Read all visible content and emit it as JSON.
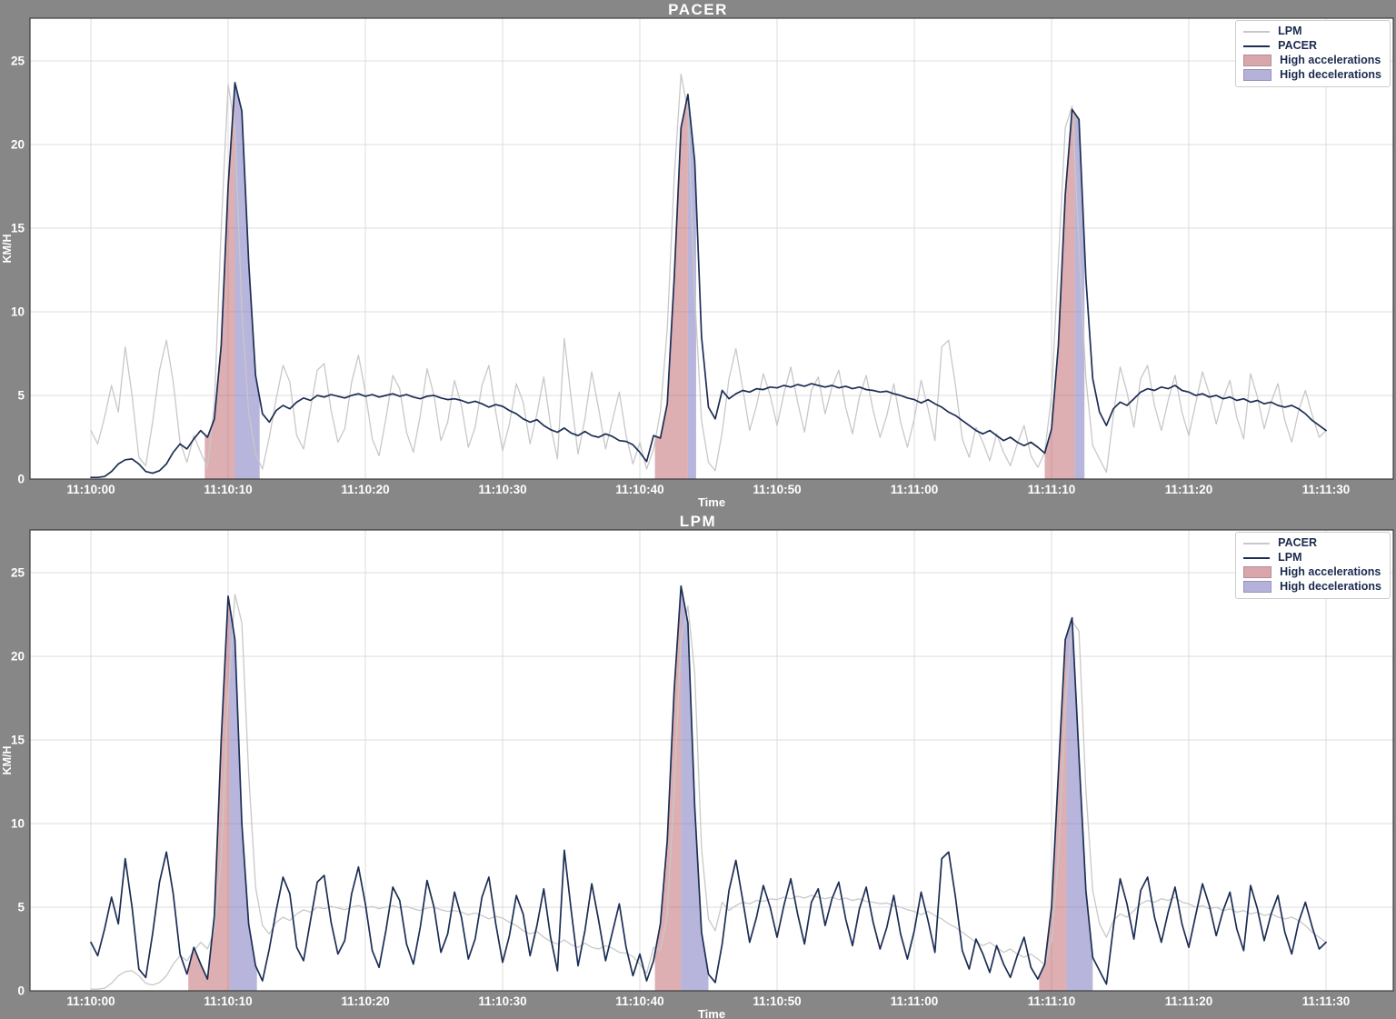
{
  "page": {
    "background": "#878787"
  },
  "charts": [
    {
      "title": "PACER",
      "xlabel": "Time",
      "ylabel": "KM/H",
      "legend": [
        {
          "label": "LPM",
          "type": "line",
          "color": "#c8c8c8"
        },
        {
          "label": "PACER",
          "type": "line",
          "color": "#1c2e54"
        },
        {
          "label": "High accelerations",
          "type": "patch",
          "color": "#d9a7ab"
        },
        {
          "label": "High decelerations",
          "type": "patch",
          "color": "#b5b2da"
        }
      ],
      "series": [
        {
          "data": "LPM",
          "color": "#c8c8c8",
          "width": 1.3
        },
        {
          "data": "PACER",
          "color": "#1c2e54",
          "width": 1.7
        }
      ],
      "primary": "PACER",
      "highlights": {
        "accelerations": [
          [
            8.3,
            10.5
          ],
          [
            41.1,
            43.5
          ],
          [
            69.5,
            71.7
          ]
        ],
        "decelerations": [
          [
            10.5,
            12.3
          ],
          [
            43.5,
            44.1
          ],
          [
            71.7,
            72.4
          ]
        ]
      }
    },
    {
      "title": "LPM",
      "xlabel": "Time",
      "ylabel": "KM/H",
      "legend": [
        {
          "label": "PACER",
          "type": "line",
          "color": "#c8c8c8"
        },
        {
          "label": "LPM",
          "type": "line",
          "color": "#1c2e54"
        },
        {
          "label": "High accelerations",
          "type": "patch",
          "color": "#d9a7ab"
        },
        {
          "label": "High decelerations",
          "type": "patch",
          "color": "#b5b2da"
        }
      ],
      "series": [
        {
          "data": "PACER",
          "color": "#c8c8c8",
          "width": 1.3
        },
        {
          "data": "LPM",
          "color": "#1c2e54",
          "width": 1.7
        }
      ],
      "primary": "LPM",
      "highlights": {
        "accelerations": [
          [
            7.1,
            10.1
          ],
          [
            41.1,
            43.0
          ],
          [
            69.1,
            71.1
          ]
        ],
        "decelerations": [
          [
            10.1,
            12.1
          ],
          [
            43.0,
            45.0
          ],
          [
            71.1,
            73.0
          ]
        ]
      }
    }
  ],
  "chart_data": {
    "type": "line",
    "title_top": "PACER",
    "title_bottom": "LPM",
    "xlabel": "Time",
    "ylabel": "KM/H",
    "x_start_label": "11:10:00",
    "x_step_seconds": 0.5,
    "x_tick_seconds": [
      0,
      10,
      20,
      30,
      40,
      50,
      60,
      70,
      80,
      90
    ],
    "x_tick_labels": [
      "11:10:00",
      "11:10:10",
      "11:10:20",
      "11:10:30",
      "11:10:40",
      "11:10:50",
      "11:11:00",
      "11:11:10",
      "11:11:20",
      "11:11:30"
    ],
    "y_ticks": [
      0,
      5,
      10,
      15,
      20,
      25
    ],
    "ylim": [
      0,
      27.6
    ],
    "grid": true,
    "legend_position": "upper right",
    "highlight_colors": {
      "accelerations": "rgba(187,95,102,0.50)",
      "decelerations": "rgba(124,120,190,0.55)"
    },
    "series": {
      "PACER": [
        0.1,
        0.1,
        0.15,
        0.45,
        0.9,
        1.15,
        1.2,
        0.9,
        0.45,
        0.35,
        0.5,
        0.9,
        1.6,
        2.1,
        1.8,
        2.4,
        2.9,
        2.5,
        3.6,
        8.0,
        17.5,
        23.7,
        22.0,
        13.0,
        6.2,
        3.9,
        3.4,
        4.1,
        4.4,
        4.2,
        4.6,
        4.85,
        4.7,
        5.0,
        4.9,
        5.05,
        4.95,
        4.85,
        5.0,
        5.1,
        4.95,
        5.05,
        4.9,
        5.0,
        5.1,
        4.95,
        5.05,
        4.9,
        4.8,
        4.95,
        5.0,
        4.85,
        4.75,
        4.8,
        4.7,
        4.55,
        4.65,
        4.5,
        4.3,
        4.45,
        4.35,
        4.1,
        3.9,
        3.6,
        3.4,
        3.55,
        3.2,
        2.95,
        2.8,
        3.05,
        2.75,
        2.6,
        2.85,
        2.6,
        2.5,
        2.7,
        2.55,
        2.3,
        2.25,
        2.05,
        1.6,
        1.05,
        2.6,
        2.45,
        4.5,
        12.0,
        21.0,
        23.0,
        19.0,
        8.5,
        4.3,
        3.6,
        5.3,
        4.8,
        5.1,
        5.3,
        5.2,
        5.4,
        5.35,
        5.5,
        5.45,
        5.6,
        5.5,
        5.65,
        5.55,
        5.7,
        5.6,
        5.5,
        5.6,
        5.45,
        5.55,
        5.4,
        5.5,
        5.35,
        5.3,
        5.2,
        5.25,
        5.1,
        5.0,
        4.85,
        4.75,
        4.55,
        4.75,
        4.5,
        4.3,
        4.0,
        3.8,
        3.5,
        3.2,
        2.9,
        2.7,
        2.9,
        2.6,
        2.3,
        2.5,
        2.2,
        2.0,
        2.2,
        1.9,
        1.55,
        3.0,
        8.0,
        17.0,
        22.1,
        21.5,
        12.0,
        6.0,
        4.0,
        3.2,
        4.2,
        4.6,
        4.4,
        4.8,
        5.2,
        5.4,
        5.3,
        5.5,
        5.4,
        5.6,
        5.3,
        5.2,
        5.0,
        5.1,
        4.9,
        5.0,
        4.8,
        4.9,
        4.7,
        4.8,
        4.6,
        4.7,
        4.5,
        4.6,
        4.4,
        4.3,
        4.4,
        4.2,
        3.9,
        3.5,
        3.2,
        2.9
      ],
      "LPM": [
        2.9,
        2.1,
        3.7,
        5.6,
        4.0,
        7.9,
        5.0,
        1.3,
        0.8,
        3.4,
        6.5,
        8.3,
        5.8,
        2.2,
        1.0,
        2.6,
        1.6,
        0.7,
        4.5,
        15.0,
        23.6,
        21.0,
        10.0,
        4.0,
        1.5,
        0.6,
        2.5,
        4.8,
        6.8,
        5.8,
        2.6,
        1.8,
        4.2,
        6.5,
        6.9,
        4.1,
        2.2,
        3.0,
        5.8,
        7.4,
        5.2,
        2.4,
        1.4,
        3.6,
        6.2,
        5.4,
        2.8,
        1.6,
        3.8,
        6.6,
        5.0,
        2.3,
        3.4,
        5.9,
        4.4,
        1.9,
        3.1,
        5.6,
        6.8,
        4.0,
        1.7,
        3.3,
        5.7,
        4.6,
        2.1,
        3.9,
        6.1,
        3.2,
        1.2,
        8.4,
        4.8,
        1.5,
        3.6,
        6.4,
        4.2,
        1.8,
        3.5,
        5.2,
        2.6,
        0.9,
        2.2,
        0.6,
        1.8,
        4.0,
        9.0,
        18.0,
        24.2,
        22.0,
        11.0,
        3.5,
        1.0,
        0.5,
        2.8,
        6.0,
        7.8,
        5.4,
        2.9,
        4.4,
        6.3,
        5.0,
        3.2,
        5.1,
        6.7,
        4.6,
        2.8,
        5.3,
        6.1,
        3.9,
        5.5,
        6.5,
        4.3,
        2.7,
        4.9,
        6.2,
        4.1,
        2.5,
        3.8,
        5.7,
        3.4,
        1.9,
        3.6,
        5.9,
        4.2,
        2.3,
        7.9,
        8.3,
        5.6,
        2.4,
        1.3,
        3.1,
        2.2,
        1.1,
        2.7,
        1.6,
        0.8,
        2.1,
        3.2,
        1.4,
        0.7,
        1.6,
        5.0,
        13.0,
        21.0,
        22.3,
        14.0,
        6.0,
        2.0,
        1.2,
        0.4,
        3.8,
        6.7,
        5.2,
        3.1,
        6.0,
        6.8,
        4.4,
        2.9,
        4.7,
        6.2,
        4.0,
        2.6,
        4.5,
        6.4,
        5.1,
        3.3,
        4.8,
        5.9,
        3.7,
        2.4,
        6.3,
        4.9,
        3.0,
        4.6,
        5.7,
        3.5,
        2.2,
        4.1,
        5.3,
        3.8,
        2.5,
        2.9
      ]
    }
  }
}
